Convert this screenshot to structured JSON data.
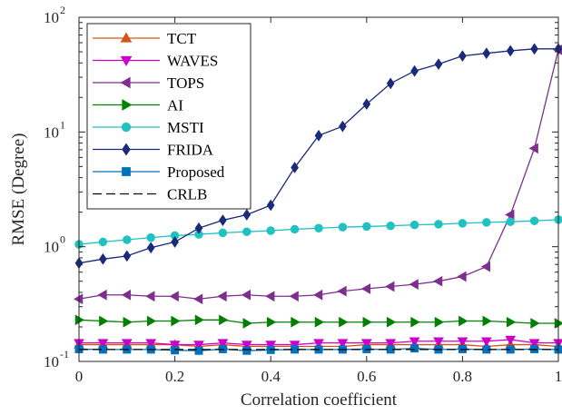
{
  "chart_data": {
    "type": "line",
    "xlabel": "Correlation coefficient",
    "ylabel": "RMSE (Degree)",
    "xlim": [
      0,
      1
    ],
    "ylim": [
      0.1,
      100
    ],
    "yscale": "log",
    "grid": false,
    "legend_position": "top-left",
    "x_ticks": [
      "0",
      "0.2",
      "0.4",
      "0.6",
      "0.8",
      "1"
    ],
    "y_tick_bases": [
      "10",
      "10",
      "10",
      "10"
    ],
    "y_tick_exponents": [
      "-1",
      "0",
      "1",
      "2"
    ],
    "x": [
      0,
      0.05,
      0.1,
      0.15,
      0.2,
      0.25,
      0.3,
      0.35,
      0.4,
      0.45,
      0.5,
      0.55,
      0.6,
      0.65,
      0.7,
      0.75,
      0.8,
      0.85,
      0.9,
      0.95,
      1.0
    ],
    "series": [
      {
        "name": "TCT",
        "color": "#d95319",
        "marker": "triangle-up",
        "values": [
          0.14,
          0.14,
          0.14,
          0.14,
          0.14,
          0.135,
          0.14,
          0.135,
          0.135,
          0.135,
          0.135,
          0.135,
          0.14,
          0.14,
          0.14,
          0.14,
          0.14,
          0.135,
          0.14,
          0.14,
          0.135
        ]
      },
      {
        "name": "WAVES",
        "color": "#cc00cc",
        "marker": "triangle-down",
        "values": [
          0.145,
          0.145,
          0.145,
          0.145,
          0.14,
          0.14,
          0.145,
          0.14,
          0.14,
          0.14,
          0.145,
          0.145,
          0.145,
          0.145,
          0.15,
          0.15,
          0.15,
          0.15,
          0.155,
          0.145,
          0.145
        ]
      },
      {
        "name": "TOPS",
        "color": "#7e2f8e",
        "marker": "triangle-left",
        "values": [
          0.35,
          0.38,
          0.38,
          0.37,
          0.37,
          0.35,
          0.37,
          0.38,
          0.37,
          0.37,
          0.38,
          0.41,
          0.43,
          0.45,
          0.47,
          0.5,
          0.55,
          0.67,
          1.9,
          7.2,
          52
        ]
      },
      {
        "name": "AI",
        "color": "#008000",
        "marker": "triangle-right",
        "values": [
          0.23,
          0.225,
          0.22,
          0.225,
          0.225,
          0.23,
          0.23,
          0.215,
          0.22,
          0.22,
          0.22,
          0.22,
          0.22,
          0.22,
          0.22,
          0.22,
          0.225,
          0.225,
          0.22,
          0.215,
          0.215
        ]
      },
      {
        "name": "MSTI",
        "color": "#21c1c1",
        "marker": "circle",
        "values": [
          1.05,
          1.1,
          1.15,
          1.2,
          1.25,
          1.28,
          1.32,
          1.35,
          1.38,
          1.42,
          1.45,
          1.48,
          1.5,
          1.52,
          1.55,
          1.57,
          1.6,
          1.63,
          1.65,
          1.68,
          1.72
        ]
      },
      {
        "name": "FRIDA",
        "color": "#1b2a7b",
        "marker": "diamond",
        "values": [
          0.72,
          0.78,
          0.83,
          0.98,
          1.1,
          1.45,
          1.7,
          1.9,
          2.3,
          4.9,
          9.3,
          11.2,
          17.5,
          26.5,
          34,
          39,
          46,
          48.5,
          51,
          53,
          53
        ]
      },
      {
        "name": "Proposed",
        "color": "#0072bd",
        "marker": "square",
        "values": [
          0.128,
          0.127,
          0.127,
          0.127,
          0.125,
          0.124,
          0.128,
          0.124,
          0.126,
          0.127,
          0.127,
          0.127,
          0.128,
          0.127,
          0.13,
          0.127,
          0.128,
          0.127,
          0.127,
          0.128,
          0.127
        ]
      },
      {
        "name": "CRLB",
        "color": "#000000",
        "marker": "none",
        "dashed": true,
        "values": [
          0.127,
          0.127,
          0.127,
          0.127,
          0.127,
          0.127,
          0.127,
          0.127,
          0.127,
          0.127,
          0.127,
          0.127,
          0.127,
          0.127,
          0.127,
          0.127,
          0.127,
          0.127,
          0.127,
          0.127,
          0.127
        ]
      }
    ]
  }
}
